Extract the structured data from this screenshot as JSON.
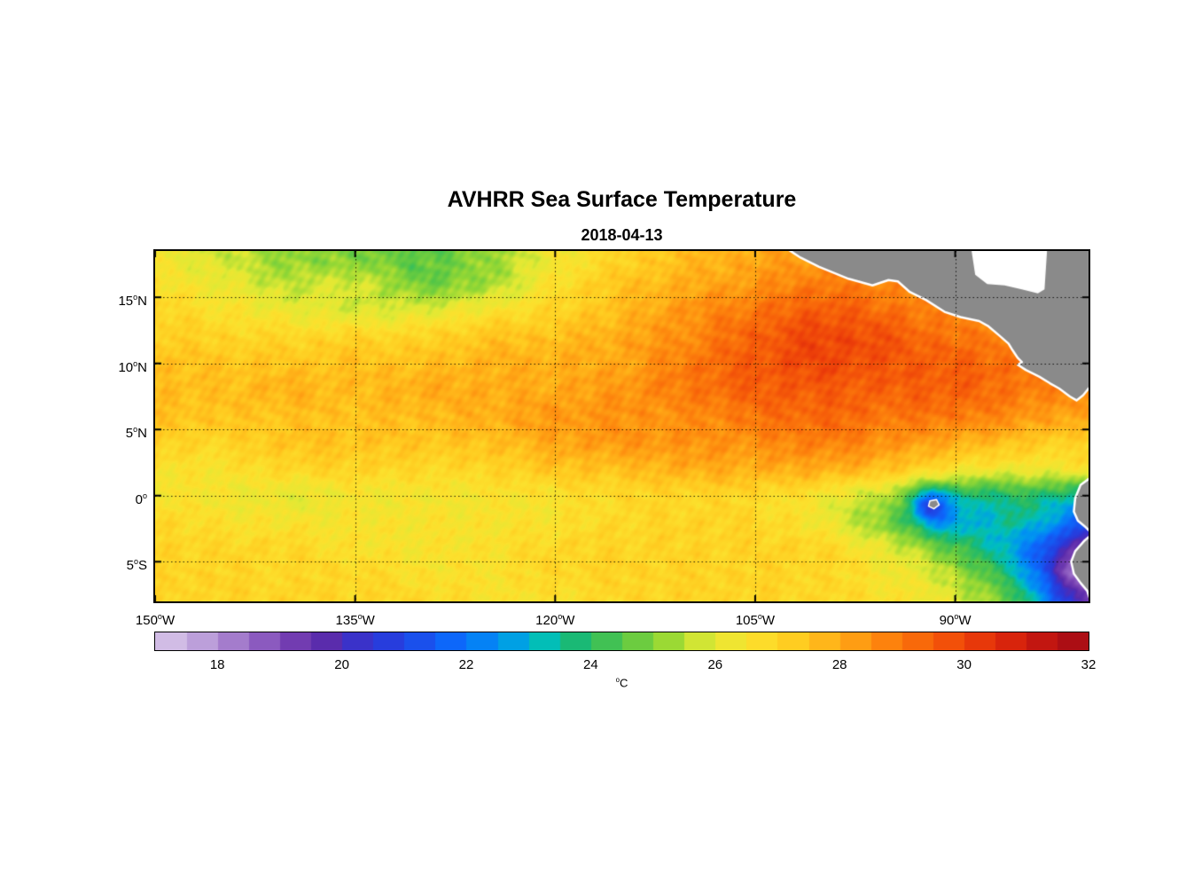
{
  "title": "AVHRR Sea Surface Temperature",
  "subtitle": "2018-04-13",
  "colorbar": {
    "label": "°C",
    "min": 17,
    "max": 32,
    "ticks": [
      18,
      20,
      22,
      24,
      26,
      28,
      30,
      32
    ]
  },
  "axes": {
    "lon_range": [
      -150,
      -80
    ],
    "lat_range": [
      -8,
      18.5
    ],
    "x_ticks": [
      {
        "lon": -150,
        "label": "150°W"
      },
      {
        "lon": -135,
        "label": "135°W"
      },
      {
        "lon": -120,
        "label": "120°W"
      },
      {
        "lon": -105,
        "label": "105°W"
      },
      {
        "lon": -90,
        "label": "90°W"
      }
    ],
    "y_ticks": [
      {
        "lat": 15,
        "label": "15°N"
      },
      {
        "lat": 10,
        "label": "10°N"
      },
      {
        "lat": 5,
        "label": "5°N"
      },
      {
        "lat": 0,
        "label": "0°"
      },
      {
        "lat": -5,
        "label": "5°S"
      }
    ],
    "grid_lons": [
      -135,
      -120,
      -105,
      -90
    ],
    "grid_lats": [
      15,
      10,
      5,
      0,
      -5
    ]
  },
  "chart_data": {
    "type": "heatmap",
    "units": "°C",
    "land_color": "#8a8a8a",
    "lons": [
      -150,
      -145,
      -140,
      -135,
      -130,
      -125,
      -120,
      -115,
      -110,
      -105,
      -100,
      -95,
      -90,
      -85,
      -80
    ],
    "lats": [
      18,
      16,
      14,
      12,
      10,
      8,
      6,
      4,
      2,
      0,
      -2,
      -4,
      -6,
      -8
    ],
    "sst": [
      [
        26.3,
        25.8,
        25.2,
        25.0,
        24.6,
        25.2,
        26.3,
        27.0,
        27.6,
        28.0,
        28.4,
        28.2,
        28.0,
        28.0,
        28.0
      ],
      [
        26.6,
        26.2,
        25.6,
        25.8,
        24.9,
        25.4,
        26.6,
        27.4,
        27.9,
        28.4,
        28.9,
        28.6,
        28.4,
        28.3,
        28.0
      ],
      [
        27.0,
        26.6,
        26.2,
        25.9,
        26.0,
        26.5,
        27.0,
        27.6,
        28.4,
        29.0,
        29.5,
        29.1,
        28.6,
        28.5,
        28.4
      ],
      [
        27.2,
        27.0,
        26.9,
        27.0,
        27.0,
        27.4,
        27.5,
        28.0,
        28.6,
        29.4,
        29.9,
        29.6,
        29.0,
        28.9,
        28.6
      ],
      [
        27.5,
        27.4,
        27.4,
        27.5,
        27.5,
        27.8,
        27.9,
        28.1,
        28.9,
        29.5,
        29.9,
        29.6,
        29.4,
        29.0,
        28.6
      ],
      [
        27.6,
        27.5,
        27.8,
        27.6,
        27.9,
        27.9,
        28.0,
        28.4,
        28.9,
        29.4,
        29.5,
        29.4,
        29.4,
        28.9,
        28.5
      ],
      [
        27.5,
        27.4,
        27.5,
        27.5,
        27.6,
        27.9,
        28.3,
        28.4,
        28.5,
        29.0,
        29.3,
        29.0,
        28.9,
        28.4,
        28.0
      ],
      [
        27.1,
        27.0,
        27.4,
        27.4,
        27.4,
        27.5,
        28.0,
        28.3,
        28.4,
        28.5,
        28.8,
        28.4,
        27.9,
        27.4,
        27.0
      ],
      [
        26.6,
        26.6,
        26.9,
        27.0,
        26.9,
        27.0,
        27.4,
        27.5,
        27.9,
        27.9,
        27.9,
        27.4,
        26.5,
        26.2,
        26.4
      ],
      [
        26.5,
        26.4,
        26.1,
        26.4,
        26.4,
        26.5,
        26.6,
        26.9,
        27.0,
        26.9,
        26.4,
        25.4,
        23.8,
        24.0,
        23.4
      ],
      [
        26.9,
        26.6,
        26.5,
        26.5,
        26.5,
        26.5,
        26.6,
        26.9,
        27.0,
        26.9,
        26.3,
        24.9,
        22.9,
        23.4,
        21.4
      ],
      [
        27.0,
        26.9,
        26.9,
        26.6,
        26.5,
        26.6,
        26.9,
        27.0,
        27.0,
        27.0,
        26.9,
        26.0,
        24.4,
        22.4,
        19.4
      ],
      [
        27.0,
        27.0,
        26.9,
        26.9,
        26.6,
        26.6,
        26.9,
        27.0,
        27.0,
        27.0,
        26.9,
        26.4,
        25.4,
        23.0,
        18.4
      ],
      [
        27.0,
        27.0,
        27.0,
        26.9,
        26.9,
        26.6,
        26.6,
        26.9,
        27.0,
        27.0,
        26.9,
        26.6,
        25.9,
        24.0,
        19.4
      ]
    ],
    "features": [
      {
        "name": "galapagos-cold-spot",
        "lon": -91.8,
        "lat": -0.7,
        "amp": -3.0,
        "sigma": 0.9
      },
      {
        "name": "peru-coast-cold",
        "lon": -81.2,
        "lat": -5.4,
        "amp": -0.8,
        "sigma": 1.0
      }
    ],
    "colormap": [
      [
        17.0,
        [
          218,
          200,
          234
        ]
      ],
      [
        17.5,
        [
          200,
          176,
          224
        ]
      ],
      [
        18.0,
        [
          176,
          141,
          211
        ]
      ],
      [
        18.6,
        [
          146,
          99,
          195
        ]
      ],
      [
        19.2,
        [
          116,
          62,
          177
        ]
      ],
      [
        19.8,
        [
          88,
          42,
          172
        ]
      ],
      [
        20.4,
        [
          48,
          52,
          210
        ]
      ],
      [
        21.0,
        [
          32,
          68,
          228
        ]
      ],
      [
        21.8,
        [
          12,
          105,
          252
        ]
      ],
      [
        22.6,
        [
          0,
          150,
          240
        ]
      ],
      [
        23.2,
        [
          0,
          190,
          190
        ]
      ],
      [
        23.8,
        [
          28,
          185,
          110
        ]
      ],
      [
        24.5,
        [
          85,
          198,
          70
        ]
      ],
      [
        25.2,
        [
          150,
          216,
          52
        ]
      ],
      [
        25.9,
        [
          225,
          233,
          52
        ]
      ],
      [
        26.6,
        [
          252,
          225,
          45
        ]
      ],
      [
        27.3,
        [
          255,
          203,
          32
        ]
      ],
      [
        28.0,
        [
          255,
          170,
          22
        ]
      ],
      [
        28.7,
        [
          253,
          133,
          13
        ]
      ],
      [
        29.4,
        [
          247,
          97,
          9
        ]
      ],
      [
        30.1,
        [
          236,
          62,
          9
        ]
      ],
      [
        30.8,
        [
          214,
          34,
          12
        ]
      ],
      [
        31.4,
        [
          188,
          18,
          17
        ]
      ],
      [
        32.0,
        [
          161,
          12,
          22
        ]
      ]
    ],
    "land": {
      "central_america": [
        [
          -102.5,
          18.6
        ],
        [
          -101.6,
          18.0
        ],
        [
          -100.2,
          17.3
        ],
        [
          -98.0,
          16.4
        ],
        [
          -96.2,
          15.9
        ],
        [
          -95.0,
          16.3
        ],
        [
          -94.3,
          16.2
        ],
        [
          -93.4,
          15.4
        ],
        [
          -92.2,
          14.8
        ],
        [
          -90.8,
          13.9
        ],
        [
          -89.6,
          13.5
        ],
        [
          -88.2,
          13.2
        ],
        [
          -87.5,
          12.8
        ],
        [
          -86.8,
          12.2
        ],
        [
          -86.0,
          11.5
        ],
        [
          -85.7,
          11.0
        ],
        [
          -85.3,
          10.4
        ],
        [
          -85.0,
          10.1
        ],
        [
          -85.3,
          9.9
        ],
        [
          -84.7,
          9.5
        ],
        [
          -83.7,
          9.0
        ],
        [
          -82.9,
          8.5
        ],
        [
          -82.2,
          8.1
        ],
        [
          -81.4,
          7.5
        ],
        [
          -80.9,
          7.2
        ],
        [
          -80.4,
          7.6
        ],
        [
          -80.0,
          8.1
        ],
        [
          -79.4,
          8.5
        ],
        [
          -78.5,
          8.2
        ],
        [
          -78.0,
          8.6
        ],
        [
          -78.0,
          19.2
        ],
        [
          -102.5,
          19.2
        ]
      ],
      "south_america": [
        [
          -78.5,
          2.0
        ],
        [
          -79.8,
          1.4
        ],
        [
          -80.6,
          0.8
        ],
        [
          -81.0,
          -0.2
        ],
        [
          -81.1,
          -1.2
        ],
        [
          -80.8,
          -1.9
        ],
        [
          -80.2,
          -2.4
        ],
        [
          -79.7,
          -2.9
        ],
        [
          -80.3,
          -3.4
        ],
        [
          -81.0,
          -4.2
        ],
        [
          -81.3,
          -5.0
        ],
        [
          -81.1,
          -5.9
        ],
        [
          -80.6,
          -6.6
        ],
        [
          -80.1,
          -7.2
        ],
        [
          -79.7,
          -8.4
        ],
        [
          -77.5,
          -8.4
        ],
        [
          -77.5,
          2.0
        ]
      ],
      "galapagos": [
        [
          -91.9,
          -0.4
        ],
        [
          -91.4,
          -0.3
        ],
        [
          -91.2,
          -0.7
        ],
        [
          -91.6,
          -1.0
        ],
        [
          -92.0,
          -0.8
        ]
      ]
    },
    "nodata": {
      "caribbean": [
        [
          -88.8,
          18.7
        ],
        [
          -88.5,
          16.7
        ],
        [
          -87.6,
          16.0
        ],
        [
          -86.3,
          15.9
        ],
        [
          -85.0,
          15.6
        ],
        [
          -83.8,
          15.3
        ],
        [
          -83.3,
          15.6
        ],
        [
          -83.1,
          18.7
        ]
      ]
    }
  }
}
